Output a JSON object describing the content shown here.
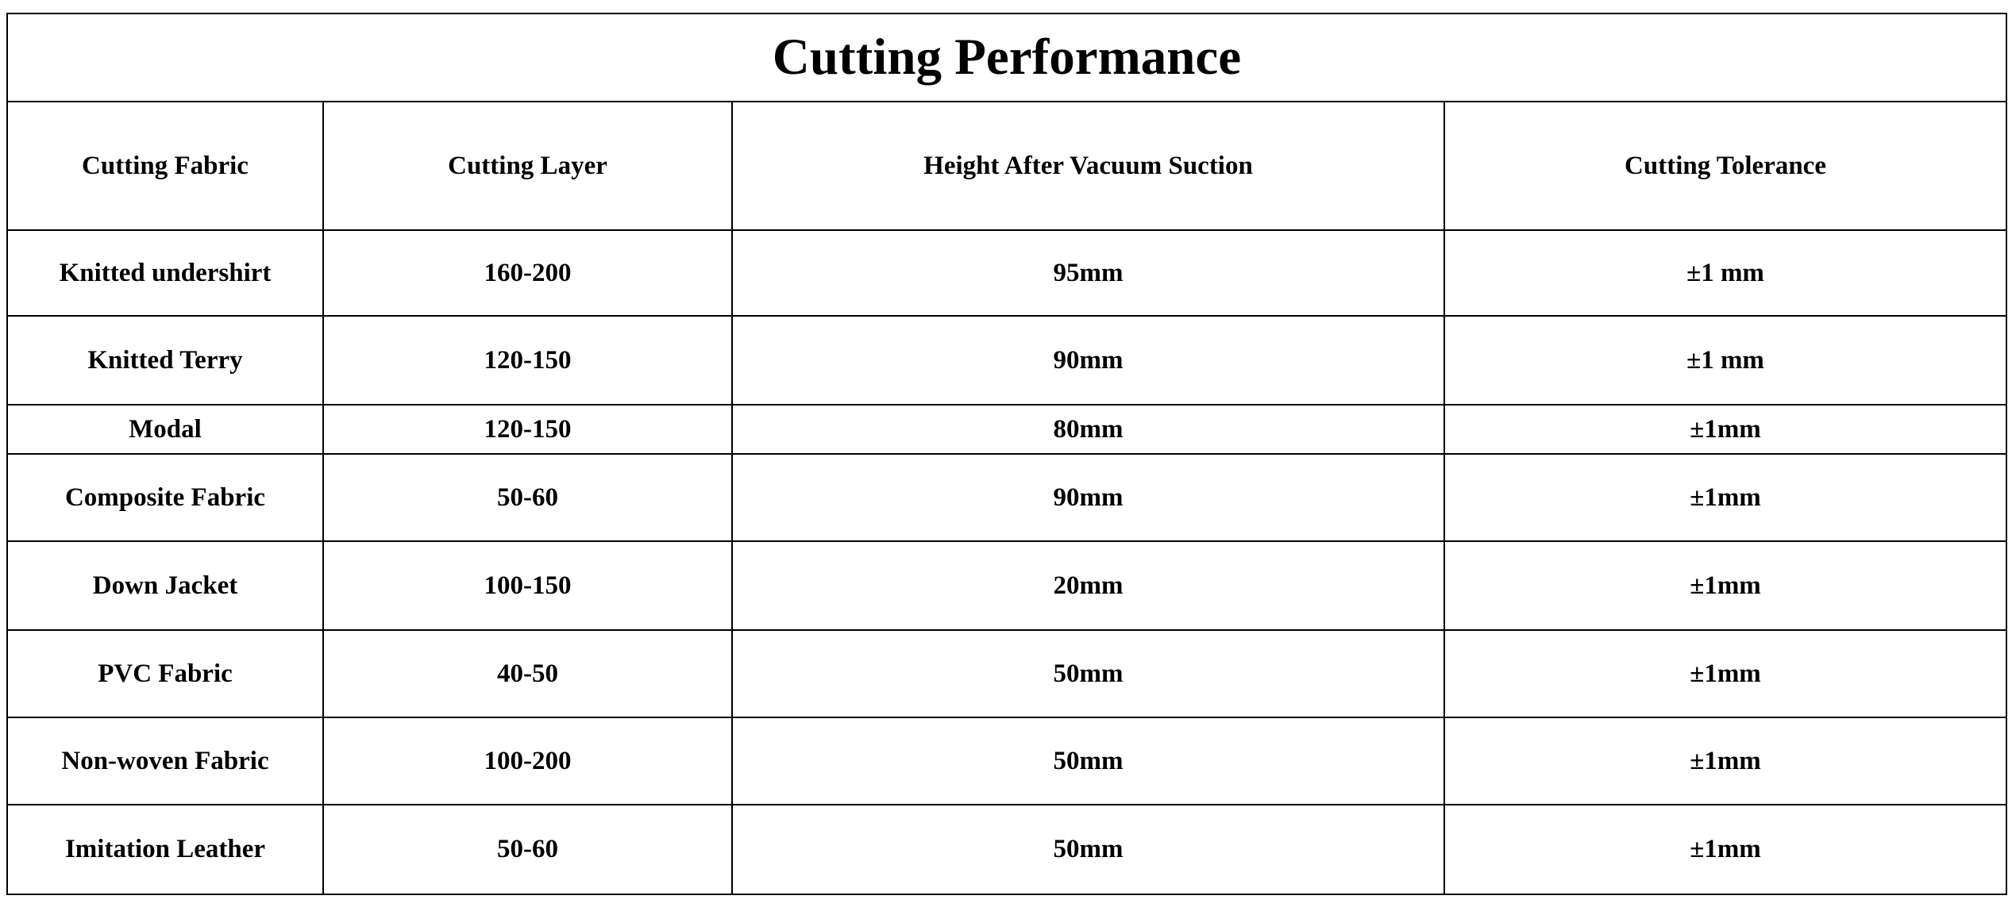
{
  "table": {
    "title": "Cutting Performance",
    "header": [
      "Cutting Fabric",
      "Cutting Layer",
      "Height After Vacuum Suction",
      "Cutting Tolerance"
    ],
    "rows": [
      [
        "Knitted undershirt",
        "160-200",
        "95mm",
        "±1 mm"
      ],
      [
        "Knitted Terry",
        "120-150",
        "90mm",
        "±1 mm"
      ],
      [
        "Modal",
        "120-150",
        "80mm",
        "±1mm"
      ],
      [
        "Composite Fabric",
        "50-60",
        "90mm",
        "±1mm"
      ],
      [
        "Down Jacket",
        "100-150",
        "20mm",
        "±1mm"
      ],
      [
        "PVC Fabric",
        "40-50",
        "50mm",
        "±1mm"
      ],
      [
        "Non-woven Fabric",
        "100-200",
        "50mm",
        "±1mm"
      ],
      [
        "Imitation Leather",
        "50-60",
        "50mm",
        "±1mm"
      ]
    ]
  }
}
